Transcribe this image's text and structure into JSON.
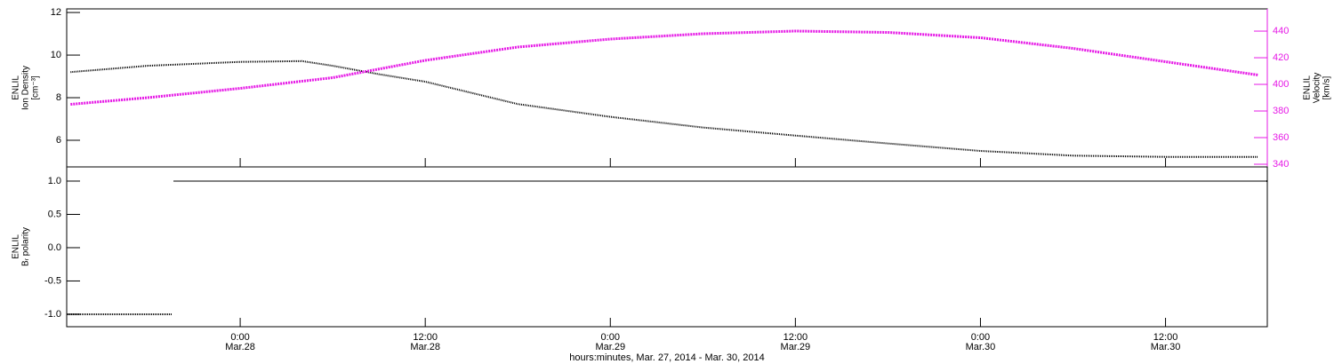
{
  "chart_data": [
    {
      "type": "line",
      "ylabel": [
        "ENLIL",
        "Ion Density",
        "[cm⁻³]"
      ],
      "y2label": [
        "ENLIL",
        "Velocity",
        "[km/s]"
      ],
      "xlim": [
        -11.25,
        66.6
      ],
      "ylim": [
        4.75,
        12.17
      ],
      "yticks": [
        6,
        8,
        10,
        12
      ],
      "y2lim": [
        338,
        456.7
      ],
      "y2ticks": [
        340,
        360,
        380,
        400,
        420,
        440
      ],
      "y2color": "#e619e6",
      "series": [
        {
          "color": "#000000",
          "x": [
            -11,
            -6,
            0,
            4,
            6,
            9,
            12,
            18,
            24,
            30,
            36,
            42,
            48,
            54,
            60,
            66
          ],
          "values": [
            9.2,
            9.5,
            9.68,
            9.72,
            9.5,
            9.1,
            8.75,
            7.7,
            7.1,
            6.6,
            6.22,
            5.85,
            5.5,
            5.28,
            5.22,
            5.22
          ]
        },
        {
          "color": "#e619e6",
          "axis": "y2",
          "x": [
            -11,
            -6,
            0,
            6,
            12,
            18,
            24,
            30,
            36,
            42,
            48,
            54,
            60,
            66
          ],
          "values": [
            385,
            390,
            397,
            405,
            418,
            428,
            434,
            438,
            440,
            439,
            435,
            427,
            417,
            407
          ]
        }
      ]
    },
    {
      "type": "line",
      "ylabel": [
        "ENLIL",
        "Bᵣ polarity"
      ],
      "xlabel": "hours:minutes, Mar. 27, 2014 - Mar. 30, 2014",
      "xlim": [
        -11.25,
        66.6
      ],
      "xticks": [
        {
          "value": 0,
          "label": "0:00\nMar.28"
        },
        {
          "value": 12,
          "label": "12:00\nMar.28"
        },
        {
          "value": 24,
          "label": "0:00\nMar.29"
        },
        {
          "value": 36,
          "label": "12:00\nMar.29"
        },
        {
          "value": 48,
          "label": "0:00\nMar.30"
        },
        {
          "value": 60,
          "label": "12:00\nMar.30"
        }
      ],
      "ylim": [
        -1.187,
        1.213
      ],
      "yticks": [
        {
          "value": -1,
          "label": "-1.0"
        },
        {
          "value": -0.5,
          "label": "-0.5"
        },
        {
          "value": 0,
          "label": "0.0"
        },
        {
          "value": 0.5,
          "label": "0.5"
        },
        {
          "value": 1,
          "label": "1.0"
        }
      ],
      "series": [
        {
          "color": "#000000",
          "x": [
            -11.2,
            -4.4,
            -4.3,
            -4.3,
            66.6
          ],
          "values": [
            -1,
            -1,
            null,
            1,
            1
          ]
        }
      ]
    }
  ]
}
